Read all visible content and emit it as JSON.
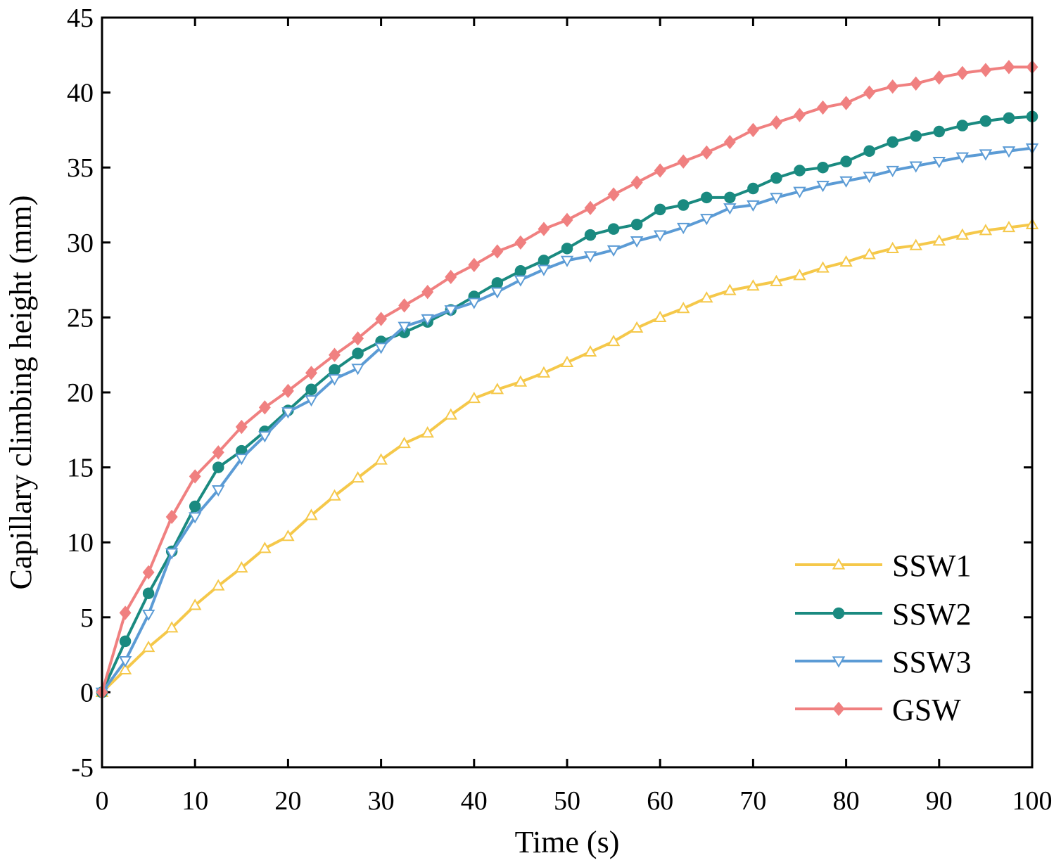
{
  "chart_data": {
    "type": "line",
    "xlabel": "Time (s)",
    "ylabel": "Capillary climbing height (mm)",
    "xlim": [
      0,
      100
    ],
    "ylim": [
      -5,
      45
    ],
    "xticks": [
      0,
      10,
      20,
      30,
      40,
      50,
      60,
      70,
      80,
      90,
      100
    ],
    "yticks": [
      -5,
      0,
      5,
      10,
      15,
      20,
      25,
      30,
      35,
      40,
      45
    ],
    "grid": false,
    "legend_position": "bottom-right",
    "x": [
      0,
      2.5,
      5,
      7.5,
      10,
      12.5,
      15,
      17.5,
      20,
      22.5,
      25,
      27.5,
      30,
      32.5,
      35,
      37.5,
      40,
      42.5,
      45,
      47.5,
      50,
      52.5,
      55,
      57.5,
      60,
      62.5,
      65,
      67.5,
      70,
      72.5,
      75,
      77.5,
      80,
      82.5,
      85,
      87.5,
      90,
      92.5,
      95,
      97.5,
      100
    ],
    "series": [
      {
        "name": "SSW1",
        "color": "#f5c84a",
        "marker": "triangle-up-open",
        "values": [
          0,
          1.5,
          3.0,
          4.3,
          5.8,
          7.1,
          8.3,
          9.6,
          10.4,
          11.8,
          13.1,
          14.3,
          15.5,
          16.6,
          17.3,
          18.5,
          19.6,
          20.2,
          20.7,
          21.3,
          22.0,
          22.7,
          23.4,
          24.3,
          25.0,
          25.6,
          26.3,
          26.8,
          27.1,
          27.4,
          27.8,
          28.3,
          28.7,
          29.2,
          29.6,
          29.8,
          30.1,
          30.5,
          30.8,
          31.0,
          31.2
        ]
      },
      {
        "name": "SSW2",
        "color": "#1a8a80",
        "marker": "circle",
        "values": [
          0,
          3.4,
          6.6,
          9.4,
          12.4,
          15.0,
          16.1,
          17.4,
          18.8,
          20.2,
          21.5,
          22.6,
          23.4,
          24.0,
          24.7,
          25.5,
          26.4,
          27.3,
          28.1,
          28.8,
          29.6,
          30.5,
          30.9,
          31.2,
          32.2,
          32.5,
          33.0,
          33.0,
          33.6,
          34.3,
          34.8,
          35.0,
          35.4,
          36.1,
          36.7,
          37.1,
          37.4,
          37.8,
          38.1,
          38.3,
          38.4
        ]
      },
      {
        "name": "SSW3",
        "color": "#5b9bd5",
        "marker": "triangle-down-open",
        "values": [
          0,
          2.1,
          5.2,
          9.3,
          11.7,
          13.5,
          15.6,
          17.1,
          18.7,
          19.5,
          20.9,
          21.6,
          23.0,
          24.4,
          24.9,
          25.5,
          26.0,
          26.7,
          27.5,
          28.2,
          28.8,
          29.1,
          29.5,
          30.1,
          30.5,
          31.0,
          31.6,
          32.3,
          32.5,
          33.0,
          33.4,
          33.8,
          34.1,
          34.4,
          34.8,
          35.1,
          35.4,
          35.7,
          35.9,
          36.1,
          36.3
        ]
      },
      {
        "name": "GSW",
        "color": "#f08080",
        "marker": "diamond",
        "values": [
          0,
          5.3,
          8.0,
          11.7,
          14.4,
          16.0,
          17.7,
          19.0,
          20.1,
          21.3,
          22.5,
          23.6,
          24.9,
          25.8,
          26.7,
          27.7,
          28.5,
          29.4,
          30.0,
          30.9,
          31.5,
          32.3,
          33.2,
          34.0,
          34.8,
          35.4,
          36.0,
          36.7,
          37.5,
          38.0,
          38.5,
          39.0,
          39.3,
          40.0,
          40.4,
          40.6,
          41.0,
          41.3,
          41.5,
          41.7,
          41.7
        ]
      }
    ]
  }
}
